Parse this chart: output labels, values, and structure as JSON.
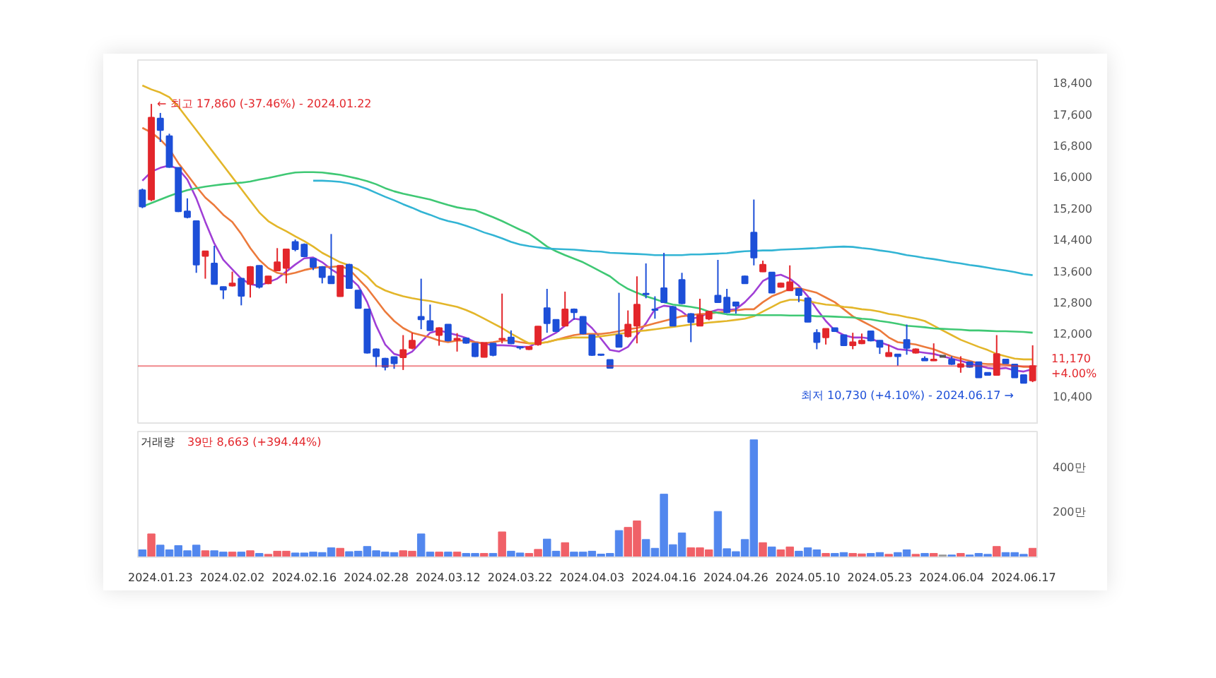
{
  "chart_data": [
    {
      "type": "candlestick",
      "tick_labels": "y",
      "categories": [
        null,
        null,
        "2024.01.23",
        null,
        null,
        null,
        null,
        null,
        null,
        null,
        "2024.02.02",
        null,
        null,
        null,
        null,
        null,
        null,
        null,
        "2024.02.16",
        null,
        null,
        null,
        null,
        null,
        null,
        null,
        "2024.02.28",
        null,
        null,
        null,
        null,
        null,
        null,
        null,
        "2024.03.12",
        null,
        null,
        null,
        null,
        null,
        null,
        null,
        "2024.03.22",
        null,
        null,
        null,
        null,
        null,
        null,
        null,
        "2024.04.03",
        null,
        null,
        null,
        null,
        null,
        null,
        null,
        "2024.04.16",
        null,
        null,
        null,
        null,
        null,
        null,
        null,
        "2024.04.26",
        null,
        null,
        null,
        null,
        null,
        null,
        null,
        "2024.05.10",
        null,
        null,
        null,
        null,
        null,
        null,
        null,
        "2024.05.23",
        null,
        null,
        null,
        null,
        null,
        null,
        null,
        "2024.06.04",
        null,
        null,
        null,
        null,
        null,
        null,
        null,
        "2024.06.17",
        null
      ],
      "ohlc": [
        [
          15660,
          15700,
          15200,
          15240
        ],
        [
          15420,
          17860,
          15380,
          17510
        ],
        [
          17490,
          17630,
          16890,
          17190
        ],
        [
          17040,
          17100,
          16230,
          16250
        ],
        [
          16230,
          16230,
          15100,
          15120
        ],
        [
          15120,
          15450,
          14940,
          14970
        ],
        [
          14870,
          14880,
          13550,
          13760
        ],
        [
          13980,
          14110,
          13400,
          14100
        ],
        [
          13790,
          14240,
          13250,
          13260
        ],
        [
          13190,
          13200,
          12880,
          13120
        ],
        [
          13220,
          13580,
          13200,
          13280
        ],
        [
          13400,
          13420,
          12720,
          12960
        ],
        [
          13260,
          13720,
          12920,
          13700
        ],
        [
          13730,
          13740,
          13150,
          13190
        ],
        [
          13280,
          13470,
          13260,
          13460
        ],
        [
          13610,
          14180,
          13590,
          13820
        ],
        [
          13670,
          14160,
          13280,
          14150
        ],
        [
          14340,
          14400,
          14100,
          14150
        ],
        [
          14270,
          14300,
          13950,
          13970
        ],
        [
          13910,
          13920,
          13620,
          13700
        ],
        [
          13700,
          13720,
          13280,
          13440
        ],
        [
          13460,
          14540,
          13270,
          13280
        ],
        [
          12950,
          13740,
          12940,
          13730
        ],
        [
          13760,
          13780,
          13150,
          13160
        ],
        [
          13100,
          13110,
          12640,
          12650
        ],
        [
          12620,
          12630,
          11490,
          11510
        ],
        [
          11600,
          11620,
          11150,
          11420
        ],
        [
          11360,
          11380,
          11060,
          11150
        ],
        [
          11400,
          11410,
          11100,
          11240
        ],
        [
          11390,
          11960,
          11070,
          11580
        ],
        [
          11630,
          12020,
          11600,
          11820
        ],
        [
          12430,
          13400,
          12110,
          12360
        ],
        [
          12320,
          12740,
          12070,
          12080
        ],
        [
          11960,
          12160,
          11690,
          12140
        ],
        [
          12230,
          12240,
          11800,
          11820
        ],
        [
          11840,
          12010,
          11540,
          11870
        ],
        [
          11880,
          11890,
          11740,
          11760
        ],
        [
          11750,
          11760,
          11400,
          11420
        ],
        [
          11400,
          11770,
          11390,
          11760
        ],
        [
          11750,
          11760,
          11420,
          11450
        ],
        [
          11850,
          13020,
          11750,
          11870
        ],
        [
          11900,
          12080,
          11730,
          11750
        ],
        [
          11660,
          11680,
          11590,
          11640
        ],
        [
          11600,
          11680,
          11580,
          11660
        ],
        [
          11720,
          12190,
          11690,
          12180
        ],
        [
          12650,
          13140,
          12020,
          12260
        ],
        [
          12350,
          12360,
          12040,
          12060
        ],
        [
          12200,
          13070,
          12190,
          12620
        ],
        [
          12620,
          12640,
          12350,
          12540
        ],
        [
          12430,
          12440,
          11980,
          12000
        ],
        [
          11960,
          11970,
          11430,
          11450
        ],
        [
          11470,
          11480,
          11430,
          11450
        ],
        [
          11330,
          11330,
          11110,
          11120
        ],
        [
          11960,
          13040,
          11650,
          11660
        ],
        [
          11930,
          12590,
          11900,
          12230
        ],
        [
          12200,
          13460,
          11750,
          12740
        ],
        [
          13020,
          13790,
          12900,
          13000
        ],
        [
          12620,
          12950,
          12380,
          12600
        ],
        [
          13160,
          14060,
          12790,
          12800
        ],
        [
          12680,
          12700,
          12190,
          12200
        ],
        [
          13370,
          13550,
          12750,
          12770
        ],
        [
          12500,
          12520,
          11780,
          12290
        ],
        [
          12200,
          12890,
          12190,
          12470
        ],
        [
          12380,
          12580,
          12340,
          12560
        ],
        [
          12970,
          13880,
          12790,
          12800
        ],
        [
          12920,
          13140,
          12520,
          12540
        ],
        [
          12800,
          12810,
          12510,
          12710
        ],
        [
          13460,
          13480,
          13270,
          13280
        ],
        [
          14580,
          15420,
          13740,
          13940
        ],
        [
          13580,
          13860,
          13570,
          13760
        ],
        [
          13560,
          13570,
          13030,
          13040
        ],
        [
          13190,
          13300,
          13170,
          13280
        ],
        [
          13100,
          13740,
          13090,
          13310
        ],
        [
          13140,
          13150,
          12800,
          12980
        ],
        [
          12900,
          12910,
          12290,
          12300
        ],
        [
          12020,
          12110,
          11600,
          11780
        ],
        [
          11900,
          12130,
          11720,
          12120
        ],
        [
          12140,
          12150,
          12040,
          12060
        ],
        [
          11960,
          11970,
          11680,
          11700
        ],
        [
          11700,
          12020,
          11600,
          11780
        ],
        [
          11750,
          12000,
          11730,
          11820
        ],
        [
          12060,
          12070,
          11800,
          11820
        ],
        [
          11820,
          11830,
          11480,
          11660
        ],
        [
          11420,
          11720,
          11410,
          11510
        ],
        [
          11470,
          11480,
          11180,
          11420
        ],
        [
          11840,
          12230,
          11460,
          11630
        ],
        [
          11510,
          11620,
          11490,
          11600
        ],
        [
          11360,
          11420,
          11300,
          11310
        ],
        [
          11310,
          11750,
          11300,
          11340
        ],
        [
          11420,
          11420,
          11420,
          11420
        ],
        [
          11340,
          11420,
          11200,
          11220
        ],
        [
          11150,
          11420,
          11000,
          11220
        ],
        [
          11270,
          11280,
          11130,
          11150
        ],
        [
          11270,
          11280,
          10870,
          10880
        ],
        [
          11000,
          11010,
          10930,
          10940
        ],
        [
          10940,
          11960,
          10930,
          11480
        ],
        [
          11340,
          11350,
          11230,
          11240
        ],
        [
          11210,
          11220,
          10870,
          10880
        ],
        [
          10940,
          10950,
          10730,
          10740
        ],
        [
          10800,
          11700,
          10760,
          11170
        ]
      ],
      "colors": [
        "#1d4fd8",
        "#e3262b",
        "#1d4fd8",
        "#1d4fd8",
        "#1d4fd8",
        "#1d4fd8",
        "#1d4fd8",
        "#e3262b",
        "#1d4fd8",
        "#1d4fd8",
        "#e3262b",
        "#1d4fd8",
        "#e3262b",
        "#1d4fd8",
        "#e3262b",
        "#e3262b",
        "#e3262b",
        "#1d4fd8",
        "#1d4fd8",
        "#1d4fd8",
        "#1d4fd8",
        "#1d4fd8",
        "#e3262b",
        "#1d4fd8",
        "#1d4fd8",
        "#1d4fd8",
        "#1d4fd8",
        "#1d4fd8",
        "#1d4fd8",
        "#e3262b",
        "#e3262b",
        "#1d4fd8",
        "#1d4fd8",
        "#e3262b",
        "#1d4fd8",
        "#e3262b",
        "#1d4fd8",
        "#1d4fd8",
        "#e3262b",
        "#1d4fd8",
        "#e3262b",
        "#1d4fd8",
        "#1d4fd8",
        "#e3262b",
        "#e3262b",
        "#1d4fd8",
        "#1d4fd8",
        "#e3262b",
        "#1d4fd8",
        "#1d4fd8",
        "#1d4fd8",
        "#1d4fd8",
        "#1d4fd8",
        "#1d4fd8",
        "#e3262b",
        "#e3262b",
        "#1d4fd8",
        "#1d4fd8",
        "#1d4fd8",
        "#1d4fd8",
        "#1d4fd8",
        "#1d4fd8",
        "#e3262b",
        "#e3262b",
        "#1d4fd8",
        "#1d4fd8",
        "#1d4fd8",
        "#1d4fd8",
        "#1d4fd8",
        "#e3262b",
        "#1d4fd8",
        "#e3262b",
        "#e3262b",
        "#1d4fd8",
        "#1d4fd8",
        "#1d4fd8",
        "#e3262b",
        "#1d4fd8",
        "#1d4fd8",
        "#e3262b",
        "#e3262b",
        "#1d4fd8",
        "#1d4fd8",
        "#e3262b",
        "#1d4fd8",
        "#1d4fd8",
        "#e3262b",
        "#1d4fd8",
        "#e3262b",
        "#555555",
        "#1d4fd8",
        "#e3262b",
        "#1d4fd8",
        "#1d4fd8",
        "#1d4fd8",
        "#e3262b",
        "#1d4fd8",
        "#1d4fd8",
        "#1d4fd8",
        "#e3262b"
      ],
      "series": [
        {
          "type": "line",
          "color": "#a03fd6",
          "values": [
            15900,
            16130,
            16230,
            16290,
            16200,
            15930,
            15450,
            14850,
            14300,
            13880,
            13640,
            13400,
            13260,
            13220,
            13310,
            13400,
            13580,
            13760,
            13920,
            13940,
            13820,
            13640,
            13500,
            13430,
            13220,
            12800,
            12200,
            11720,
            11480,
            11420,
            11540,
            11780,
            12020,
            12080,
            12020,
            11960,
            11890,
            11780,
            11750,
            11700,
            11700,
            11690,
            11660,
            11660,
            11780,
            11900,
            12020,
            12200,
            12380,
            12350,
            12140,
            11870,
            11580,
            11540,
            11660,
            11960,
            12260,
            12620,
            12710,
            12680,
            12560,
            12380,
            12420,
            12540,
            12610,
            12600,
            12620,
            12800,
            13040,
            13340,
            13460,
            13500,
            13400,
            13220,
            12950,
            12620,
            12320,
            12080,
            11960,
            11900,
            11900,
            11870,
            11780,
            11700,
            11600,
            11580,
            11540,
            11510,
            11480,
            11420,
            11360,
            11300,
            11240,
            11180,
            11120,
            11100,
            11120,
            11060,
            11030,
            11090
          ]
        },
        {
          "type": "line",
          "color": "#ec7a3c",
          "values": [
            17250,
            17130,
            16950,
            16710,
            16350,
            16050,
            15750,
            15470,
            15270,
            15030,
            14850,
            14540,
            14180,
            13880,
            13670,
            13550,
            13500,
            13550,
            13620,
            13670,
            13700,
            13700,
            13720,
            13640,
            13400,
            13160,
            12860,
            12560,
            12320,
            12140,
            12020,
            11960,
            11900,
            11820,
            11780,
            11820,
            11820,
            11780,
            11750,
            11780,
            11820,
            11820,
            11780,
            11750,
            11750,
            11780,
            11840,
            11900,
            11960,
            11990,
            11990,
            11990,
            12020,
            12060,
            12110,
            12140,
            12200,
            12260,
            12320,
            12380,
            12440,
            12470,
            12500,
            12500,
            12540,
            12560,
            12590,
            12620,
            12620,
            12800,
            12950,
            13040,
            13140,
            13160,
            13100,
            13040,
            12920,
            12800,
            12620,
            12440,
            12320,
            12200,
            12080,
            11900,
            11780,
            11750,
            11720,
            11660,
            11600,
            11510,
            11420,
            11360,
            11300,
            11240,
            11220,
            11220,
            11210,
            11180,
            11150,
            11150
          ]
        },
        {
          "type": "line",
          "color": "#e3b62a",
          "values": [
            18330,
            18230,
            18150,
            18030,
            17790,
            17490,
            17190,
            16890,
            16590,
            16290,
            15990,
            15690,
            15390,
            15090,
            14870,
            14730,
            14610,
            14480,
            14360,
            14220,
            14060,
            13940,
            13820,
            13740,
            13640,
            13460,
            13220,
            13100,
            13020,
            12950,
            12900,
            12860,
            12830,
            12780,
            12730,
            12680,
            12600,
            12500,
            12380,
            12260,
            12140,
            12000,
            11870,
            11750,
            11750,
            11780,
            11840,
            11870,
            11900,
            11900,
            11900,
            11930,
            11960,
            11990,
            12020,
            12060,
            12080,
            12110,
            12140,
            12170,
            12200,
            12230,
            12250,
            12280,
            12300,
            12320,
            12350,
            12380,
            12440,
            12560,
            12680,
            12800,
            12860,
            12860,
            12830,
            12780,
            12740,
            12720,
            12680,
            12660,
            12620,
            12600,
            12560,
            12500,
            12470,
            12420,
            12380,
            12320,
            12200,
            12080,
            11960,
            11840,
            11750,
            11660,
            11580,
            11480,
            11420,
            11360,
            11340,
            11340
          ]
        },
        {
          "type": "line",
          "color": "#3fc874",
          "values": [
            15240,
            15330,
            15420,
            15510,
            15590,
            15660,
            15710,
            15750,
            15780,
            15810,
            15830,
            15850,
            15880,
            15930,
            15970,
            16020,
            16070,
            16110,
            16120,
            16120,
            16110,
            16080,
            16050,
            16000,
            15950,
            15890,
            15810,
            15710,
            15630,
            15570,
            15520,
            15470,
            15420,
            15350,
            15280,
            15220,
            15180,
            15150,
            15060,
            14970,
            14870,
            14760,
            14650,
            14550,
            14390,
            14220,
            14100,
            14000,
            13910,
            13820,
            13700,
            13580,
            13460,
            13280,
            13140,
            13040,
            12950,
            12880,
            12800,
            12740,
            12710,
            12680,
            12640,
            12560,
            12530,
            12490,
            12480,
            12470,
            12470,
            12470,
            12470,
            12470,
            12460,
            12460,
            12460,
            12440,
            12440,
            12430,
            12420,
            12410,
            12380,
            12360,
            12320,
            12290,
            12250,
            12200,
            12180,
            12160,
            12130,
            12120,
            12110,
            12100,
            12080,
            12080,
            12070,
            12060,
            12060,
            12050,
            12040,
            12020
          ]
        },
        {
          "type": "line",
          "color": "#32b4d4",
          "values": [
            null,
            null,
            null,
            null,
            null,
            null,
            null,
            null,
            null,
            null,
            null,
            null,
            null,
            null,
            null,
            null,
            null,
            null,
            null,
            15900,
            15900,
            15890,
            15870,
            15830,
            15770,
            15690,
            15590,
            15490,
            15400,
            15300,
            15210,
            15110,
            15030,
            14940,
            14870,
            14820,
            14750,
            14670,
            14580,
            14510,
            14430,
            14340,
            14270,
            14230,
            14200,
            14170,
            14160,
            14150,
            14140,
            14120,
            14100,
            14090,
            14060,
            14050,
            14040,
            14030,
            14020,
            14000,
            14000,
            14000,
            14000,
            14020,
            14020,
            14030,
            14040,
            14050,
            14080,
            14100,
            14110,
            14120,
            14120,
            14140,
            14150,
            14160,
            14170,
            14180,
            14200,
            14210,
            14220,
            14210,
            14180,
            14160,
            14120,
            14090,
            14050,
            14000,
            13970,
            13930,
            13900,
            13860,
            13820,
            13790,
            13750,
            13720,
            13680,
            13640,
            13610,
            13570,
            13520,
            13490
          ]
        }
      ],
      "ylim": [
        9680,
        18980
      ],
      "yticks": [
        {
          "value": 10400,
          "label": "10,400"
        },
        {
          "value": 12000,
          "label": "12,000"
        },
        {
          "value": 12800,
          "label": "12,800"
        },
        {
          "value": 13600,
          "label": "13,600"
        },
        {
          "value": 14400,
          "label": "14,400"
        },
        {
          "value": 15200,
          "label": "15,200"
        },
        {
          "value": 16000,
          "label": "16,000"
        },
        {
          "value": 16800,
          "label": "16,800"
        },
        {
          "value": 17600,
          "label": "17,600"
        },
        {
          "value": 18400,
          "label": "18,400"
        }
      ],
      "ref_lines": [
        {
          "axis": "y",
          "value": 11170,
          "label": "11,170\n+4.00%",
          "color": "#e3262b"
        }
      ],
      "annotations": [
        "← 최고 17,860 (-37.46%) - 2024.01.22",
        "최저 10,730 (+4.10%) - 2024.06.17 →"
      ]
    },
    {
      "type": "bar",
      "title": "거래량",
      "subtitle": "39만 8,663 (+394.44%)",
      "categories": [
        null,
        null,
        "2024.01.23",
        null,
        null,
        null,
        null,
        null,
        null,
        null,
        "2024.02.02",
        null,
        null,
        null,
        null,
        null,
        null,
        null,
        "2024.02.16",
        null,
        null,
        null,
        null,
        null,
        null,
        null,
        "2024.02.28",
        null,
        null,
        null,
        null,
        null,
        null,
        null,
        "2024.03.12",
        null,
        null,
        null,
        null,
        null,
        null,
        null,
        "2024.03.22",
        null,
        null,
        null,
        null,
        null,
        null,
        null,
        "2024.04.03",
        null,
        null,
        null,
        null,
        null,
        null,
        null,
        "2024.04.16",
        null,
        null,
        null,
        null,
        null,
        null,
        null,
        "2024.04.26",
        null,
        null,
        null,
        null,
        null,
        null,
        null,
        "2024.05.10",
        null,
        null,
        null,
        null,
        null,
        null,
        null,
        "2024.05.23",
        null,
        null,
        null,
        null,
        null,
        null,
        null,
        "2024.06.04",
        null,
        null,
        null,
        null,
        null,
        null,
        null,
        "2024.06.17",
        null
      ],
      "values": [
        33,
        104,
        54,
        33,
        52,
        29,
        54,
        29,
        29,
        23,
        23,
        23,
        29,
        17,
        13,
        27,
        27,
        19,
        19,
        23,
        21,
        42,
        40,
        25,
        27,
        48,
        29,
        23,
        21,
        29,
        27,
        104,
        23,
        23,
        23,
        23,
        17,
        17,
        17,
        17,
        113,
        27,
        19,
        17,
        35,
        81,
        27,
        65,
        23,
        23,
        27,
        14,
        17,
        119,
        133,
        162,
        79,
        40,
        281,
        56,
        108,
        42,
        42,
        33,
        204,
        38,
        25,
        79,
        523,
        65,
        46,
        33,
        46,
        27,
        42,
        33,
        17,
        17,
        21,
        17,
        15,
        17,
        21,
        13,
        21,
        33,
        13,
        17,
        17,
        10,
        10,
        17,
        10,
        17,
        13,
        48,
        21,
        21,
        13,
        40
      ],
      "colors": [
        "#5287ee",
        "#f06168",
        "#5287ee",
        "#5287ee",
        "#5287ee",
        "#5287ee",
        "#5287ee",
        "#f06168",
        "#5287ee",
        "#5287ee",
        "#f06168",
        "#5287ee",
        "#f06168",
        "#5287ee",
        "#f06168",
        "#f06168",
        "#f06168",
        "#5287ee",
        "#5287ee",
        "#5287ee",
        "#5287ee",
        "#5287ee",
        "#f06168",
        "#5287ee",
        "#5287ee",
        "#5287ee",
        "#5287ee",
        "#5287ee",
        "#5287ee",
        "#f06168",
        "#f06168",
        "#5287ee",
        "#5287ee",
        "#f06168",
        "#5287ee",
        "#f06168",
        "#5287ee",
        "#5287ee",
        "#f06168",
        "#5287ee",
        "#f06168",
        "#5287ee",
        "#5287ee",
        "#f06168",
        "#f06168",
        "#5287ee",
        "#5287ee",
        "#f06168",
        "#5287ee",
        "#5287ee",
        "#5287ee",
        "#5287ee",
        "#5287ee",
        "#5287ee",
        "#f06168",
        "#f06168",
        "#5287ee",
        "#5287ee",
        "#5287ee",
        "#5287ee",
        "#5287ee",
        "#f06168",
        "#f06168",
        "#f06168",
        "#5287ee",
        "#5287ee",
        "#5287ee",
        "#5287ee",
        "#5287ee",
        "#f06168",
        "#5287ee",
        "#f06168",
        "#f06168",
        "#5287ee",
        "#5287ee",
        "#5287ee",
        "#f06168",
        "#5287ee",
        "#5287ee",
        "#f06168",
        "#f06168",
        "#5287ee",
        "#5287ee",
        "#f06168",
        "#5287ee",
        "#5287ee",
        "#f06168",
        "#5287ee",
        "#f06168",
        "#9a9a9a",
        "#5287ee",
        "#f06168",
        "#5287ee",
        "#5287ee",
        "#5287ee",
        "#f06168",
        "#5287ee",
        "#5287ee",
        "#5287ee",
        "#f06168"
      ],
      "ylim": [
        0,
        560
      ],
      "yticks": [
        {
          "value": 200,
          "label": "200만"
        },
        {
          "value": 400,
          "label": "400만"
        }
      ]
    }
  ]
}
